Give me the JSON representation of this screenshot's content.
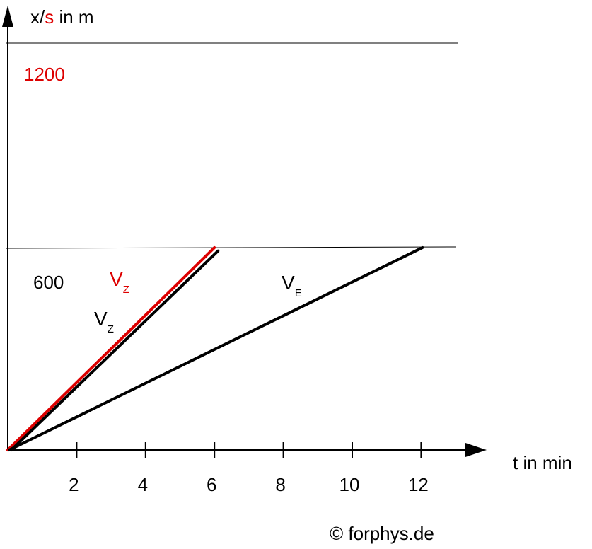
{
  "chart_data": {
    "type": "line",
    "y_axis": {
      "label_x_s": "x/",
      "label_s": "s",
      "label_unit": " in m",
      "reference_values": [
        {
          "label": "1200",
          "value": 1200,
          "color": "#dd0000"
        },
        {
          "label": "600",
          "value": 600,
          "color": "#000000"
        }
      ],
      "ylim": [
        0,
        1300
      ]
    },
    "x_axis": {
      "label": "t in min",
      "ticks": [
        {
          "label": "2",
          "value": 2
        },
        {
          "label": "4",
          "value": 4
        },
        {
          "label": "6",
          "value": 6
        },
        {
          "label": "8",
          "value": 8
        },
        {
          "label": "10",
          "value": 10
        },
        {
          "label": "12",
          "value": 12
        }
      ],
      "xlim": [
        0,
        13.9
      ]
    },
    "series": [
      {
        "main": "V",
        "sub": "Z",
        "color": "#dd0000",
        "points": [
          [
            0,
            0
          ],
          [
            6,
            600
          ]
        ]
      },
      {
        "main": "V",
        "sub": "Z",
        "color": "#000000",
        "points": [
          [
            0,
            0
          ],
          [
            6,
            590
          ]
        ]
      },
      {
        "main": "V",
        "sub": "E",
        "color": "#000000",
        "points": [
          [
            0,
            0
          ],
          [
            12,
            600
          ]
        ]
      }
    ],
    "copyright": "© forphys.de"
  },
  "colors": {
    "axis": "#000000",
    "accent": "#dd0000"
  }
}
